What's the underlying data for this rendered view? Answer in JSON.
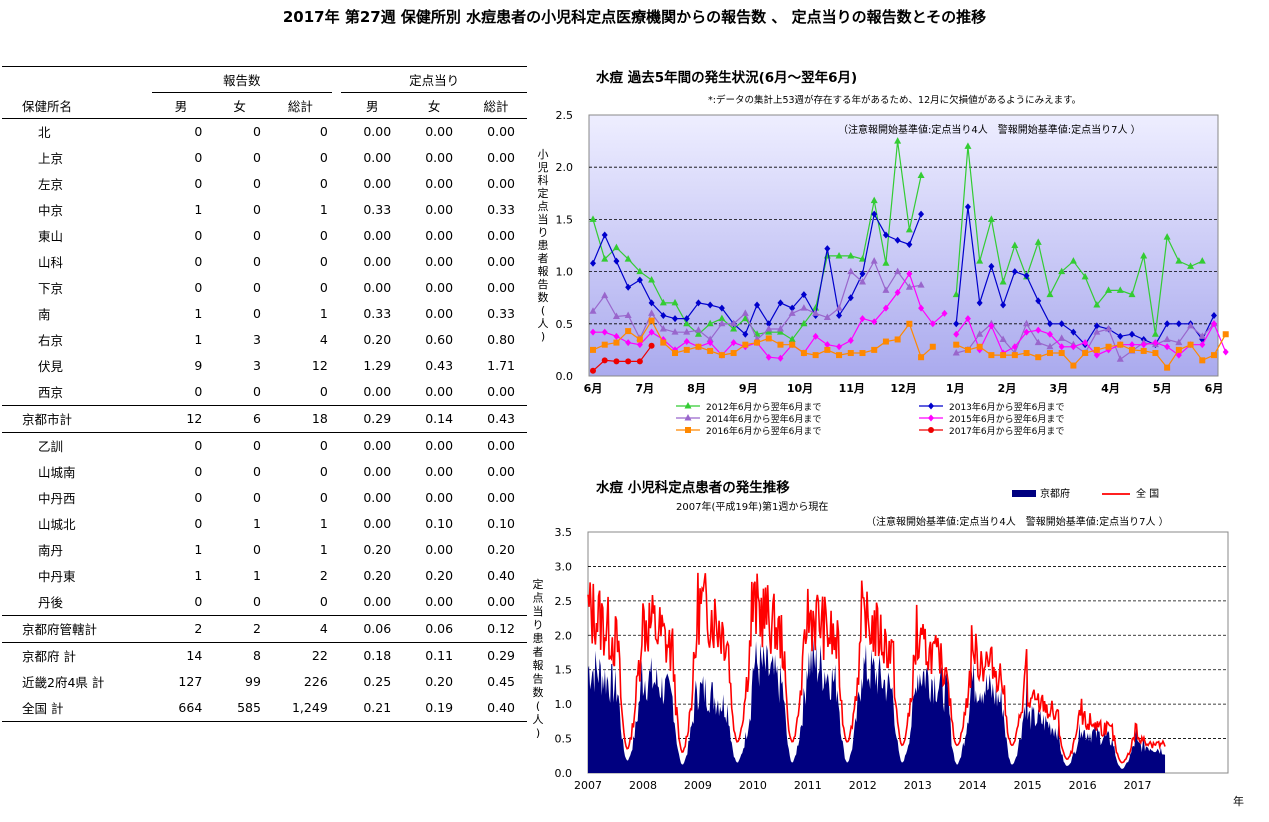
{
  "page": {
    "title": "2017年 第27週 保健所別 水痘患者の小児科定点医療機関からの報告数 、 定点当りの報告数とその推移"
  },
  "table": {
    "group_headers": {
      "reports": "報告数",
      "per_sentinel": "定点当り"
    },
    "col_headers": {
      "name": "保健所名",
      "male": "男",
      "female": "女",
      "total": "総計",
      "male2": "男",
      "female2": "女",
      "total2": "総計"
    },
    "rows": [
      {
        "name": "北",
        "m": "0",
        "f": "0",
        "t": "0",
        "pm": "0.00",
        "pf": "0.00",
        "pt": "0.00"
      },
      {
        "name": "上京",
        "m": "0",
        "f": "0",
        "t": "0",
        "pm": "0.00",
        "pf": "0.00",
        "pt": "0.00"
      },
      {
        "name": "左京",
        "m": "0",
        "f": "0",
        "t": "0",
        "pm": "0.00",
        "pf": "0.00",
        "pt": "0.00"
      },
      {
        "name": "中京",
        "m": "1",
        "f": "0",
        "t": "1",
        "pm": "0.33",
        "pf": "0.00",
        "pt": "0.33"
      },
      {
        "name": "東山",
        "m": "0",
        "f": "0",
        "t": "0",
        "pm": "0.00",
        "pf": "0.00",
        "pt": "0.00"
      },
      {
        "name": "山科",
        "m": "0",
        "f": "0",
        "t": "0",
        "pm": "0.00",
        "pf": "0.00",
        "pt": "0.00"
      },
      {
        "name": "下京",
        "m": "0",
        "f": "0",
        "t": "0",
        "pm": "0.00",
        "pf": "0.00",
        "pt": "0.00"
      },
      {
        "name": "南",
        "m": "1",
        "f": "0",
        "t": "1",
        "pm": "0.33",
        "pf": "0.00",
        "pt": "0.33"
      },
      {
        "name": "右京",
        "m": "1",
        "f": "3",
        "t": "4",
        "pm": "0.20",
        "pf": "0.60",
        "pt": "0.80"
      },
      {
        "name": "伏見",
        "m": "9",
        "f": "3",
        "t": "12",
        "pm": "1.29",
        "pf": "0.43",
        "pt": "1.71"
      },
      {
        "name": "西京",
        "m": "0",
        "f": "0",
        "t": "0",
        "pm": "0.00",
        "pf": "0.00",
        "pt": "0.00"
      },
      {
        "name": "京都市計",
        "m": "12",
        "f": "6",
        "t": "18",
        "pm": "0.29",
        "pf": "0.14",
        "pt": "0.43"
      },
      {
        "name": "乙訓",
        "m": "0",
        "f": "0",
        "t": "0",
        "pm": "0.00",
        "pf": "0.00",
        "pt": "0.00"
      },
      {
        "name": "山城南",
        "m": "0",
        "f": "0",
        "t": "0",
        "pm": "0.00",
        "pf": "0.00",
        "pt": "0.00"
      },
      {
        "name": "中丹西",
        "m": "0",
        "f": "0",
        "t": "0",
        "pm": "0.00",
        "pf": "0.00",
        "pt": "0.00"
      },
      {
        "name": "山城北",
        "m": "0",
        "f": "1",
        "t": "1",
        "pm": "0.00",
        "pf": "0.10",
        "pt": "0.10"
      },
      {
        "name": "南丹",
        "m": "1",
        "f": "0",
        "t": "1",
        "pm": "0.20",
        "pf": "0.00",
        "pt": "0.20"
      },
      {
        "name": "中丹東",
        "m": "1",
        "f": "1",
        "t": "2",
        "pm": "0.20",
        "pf": "0.20",
        "pt": "0.40"
      },
      {
        "name": "丹後",
        "m": "0",
        "f": "0",
        "t": "0",
        "pm": "0.00",
        "pf": "0.00",
        "pt": "0.00"
      },
      {
        "name": "京都府管轄計",
        "m": "2",
        "f": "2",
        "t": "4",
        "pm": "0.06",
        "pf": "0.06",
        "pt": "0.12"
      },
      {
        "name": "京都府 計",
        "m": "14",
        "f": "8",
        "t": "22",
        "pm": "0.18",
        "pf": "0.11",
        "pt": "0.29"
      },
      {
        "name": "近畿2府4県 計",
        "m": "127",
        "f": "99",
        "t": "226",
        "pm": "0.25",
        "pf": "0.20",
        "pt": "0.45"
      },
      {
        "name": "全国 計",
        "m": "664",
        "f": "585",
        "t": "1,249",
        "pm": "0.21",
        "pf": "0.19",
        "pt": "0.40"
      }
    ]
  },
  "chart_data": [
    {
      "type": "line",
      "title": "水痘 過去5年間の発生状況(6月～翌年6月)",
      "subtitle": "*:データの集計上53週が存在する年があるため、12月に欠損値があるようにみえます。",
      "annotation": "（注意報開始基準値:定点当り4人　警報開始基準値:定点当り7人 ）",
      "ylabel": "小児科定点当り患者報告数(人)",
      "ylim": [
        0,
        2.5
      ],
      "yticks": [
        "0.0",
        "0.5",
        "1.0",
        "1.5",
        "2.0",
        "2.5"
      ],
      "xticks": [
        "6月",
        "7月",
        "8月",
        "9月",
        "10月",
        "11月",
        "12月",
        "1月",
        "2月",
        "3月",
        "4月",
        "5月",
        "6月"
      ],
      "grid": true,
      "legend_position": "bottom",
      "background_gradient": [
        "#eeeeff",
        "#aaaaee"
      ],
      "series": [
        {
          "name": "2012年6月から翌年6月まで",
          "color": "#33cc33",
          "marker": "triangle",
          "segments": [
            {
              "start": 0,
              "values": [
                1.5,
                1.12,
                1.23,
                1.12,
                1.0,
                0.92,
                0.7,
                0.7,
                0.5,
                0.4,
                0.5,
                0.55,
                0.45,
                0.55,
                0.4,
                0.42,
                0.42,
                0.35,
                0.5,
                0.65,
                1.15,
                1.15,
                1.15,
                1.12,
                1.68,
                1.08,
                2.25,
                1.4,
                1.92
              ]
            },
            {
              "start": 31,
              "values": [
                0.78,
                2.2,
                1.1,
                1.5,
                0.9,
                1.25,
                0.95,
                1.28,
                0.78,
                1.0,
                1.1,
                0.95,
                0.68,
                0.82,
                0.82,
                0.78,
                1.15,
                0.4,
                1.33,
                1.1,
                1.05,
                1.1
              ]
            }
          ]
        },
        {
          "name": "2013年6月から翌年6月まで",
          "color": "#0000cc",
          "marker": "diamond",
          "segments": [
            {
              "start": 0,
              "values": [
                1.08,
                1.35,
                1.1,
                0.85,
                0.92,
                0.7,
                0.58,
                0.55,
                0.55,
                0.7,
                0.68,
                0.65,
                0.5,
                0.4,
                0.68,
                0.5,
                0.7,
                0.65,
                0.78,
                0.58,
                1.22,
                0.58,
                0.75,
                0.98,
                1.55,
                1.35,
                1.3,
                1.26,
                1.55
              ]
            },
            {
              "start": 31,
              "values": [
                0.5,
                1.62,
                0.7,
                1.05,
                0.68,
                1.0,
                0.96,
                0.72,
                0.5,
                0.5,
                0.42,
                0.3,
                0.48,
                0.45,
                0.38,
                0.4,
                0.35,
                0.3,
                0.5,
                0.5,
                0.5,
                0.35,
                0.58
              ]
            }
          ]
        },
        {
          "name": "2014年6月から翌年6月まで",
          "color": "#9966cc",
          "marker": "triangle",
          "segments": [
            {
              "start": 0,
              "values": [
                0.62,
                0.77,
                0.57,
                0.58,
                0.36,
                0.6,
                0.45,
                0.42,
                0.42,
                0.44,
                0.35,
                0.5,
                0.5,
                0.6,
                0.35,
                0.45,
                0.45,
                0.6,
                0.65,
                0.6,
                0.56,
                0.65,
                1.0,
                0.9,
                1.1,
                0.82,
                1.0,
                0.85,
                0.87
              ]
            },
            {
              "start": 31,
              "values": [
                0.22,
                0.25,
                0.4,
                0.5,
                0.35,
                0.22,
                0.5,
                0.32,
                0.28,
                0.36,
                0.3,
                0.22,
                0.42,
                0.45,
                0.16,
                0.24,
                0.32,
                0.3,
                0.35,
                0.32,
                0.48,
                0.38,
                0.5
              ]
            }
          ]
        },
        {
          "name": "2015年6月から翌年6月まで",
          "color": "#ff00ff",
          "marker": "diamond",
          "segments": [
            {
              "start": 0,
              "values": [
                0.42,
                0.42,
                0.38,
                0.32,
                0.3,
                0.42,
                0.35,
                0.25,
                0.33,
                0.28,
                0.32,
                0.2,
                0.32,
                0.28,
                0.32,
                0.18,
                0.17,
                0.3,
                0.22,
                0.38,
                0.3,
                0.28,
                0.34,
                0.55,
                0.52,
                0.65,
                0.8,
                0.98,
                0.65,
                0.5,
                0.6
              ]
            },
            {
              "start": 31,
              "values": [
                0.4,
                0.55,
                0.25,
                0.48,
                0.22,
                0.28,
                0.42,
                0.44,
                0.4,
                0.28,
                0.28,
                0.32,
                0.2,
                0.25,
                0.3,
                0.3,
                0.3,
                0.32,
                0.28,
                0.2,
                0.3,
                0.3,
                0.5,
                0.23
              ]
            }
          ]
        },
        {
          "name": "2016年6月から翌年6月まで",
          "color": "#ff8800",
          "marker": "square",
          "segments": [
            {
              "start": 0,
              "values": [
                0.25,
                0.3,
                0.32,
                0.43,
                0.35,
                0.53,
                0.32,
                0.22,
                0.25,
                0.28,
                0.24,
                0.2,
                0.22,
                0.3,
                0.32,
                0.36,
                0.3,
                0.3,
                0.22,
                0.2,
                0.25,
                0.2,
                0.22,
                0.22,
                0.25,
                0.33,
                0.35,
                0.5,
                0.18,
                0.28
              ]
            },
            {
              "start": 31,
              "values": [
                0.3,
                0.25,
                0.28,
                0.2,
                0.2,
                0.2,
                0.22,
                0.18,
                0.22,
                0.22,
                0.1,
                0.22,
                0.25,
                0.28,
                0.3,
                0.25,
                0.24,
                0.22,
                0.08,
                0.25,
                0.3,
                0.15,
                0.2,
                0.4
              ]
            }
          ]
        },
        {
          "name": "2017年6月から翌年6月まで",
          "color": "#ee0000",
          "marker": "circle",
          "segments": [
            {
              "start": 0,
              "values": [
                0.05,
                0.15,
                0.14,
                0.14,
                0.14,
                0.29
              ]
            }
          ]
        }
      ]
    },
    {
      "type": "area",
      "title": "水痘 小児科定点患者の発生推移",
      "subtitle": "2007年(平成19年)第1週から現在",
      "annotation": "（注意報開始基準値:定点当り4人　警報開始基準値:定点当り7人 ）",
      "ylabel": "定点当り患者報告数(人)",
      "xlabel": "年",
      "ylim": [
        0,
        3.5
      ],
      "yticks": [
        "0.0",
        "0.5",
        "1.0",
        "1.5",
        "2.0",
        "2.5",
        "3.0",
        "3.5"
      ],
      "xticks": [
        "2007",
        "2008",
        "2009",
        "2010",
        "2011",
        "2012",
        "2013",
        "2014",
        "2015",
        "2016",
        "2017"
      ],
      "grid": true,
      "legend_position": "top-right",
      "series": [
        {
          "name": "京都府",
          "kind": "area",
          "color": "#000080",
          "yearly_profile": {
            "peaks": [
              1.9,
              1.75,
              1.5,
              2.0,
              2.05,
              1.9,
              1.85,
              1.65,
              1.0,
              0.75,
              0.5
            ],
            "troughs": [
              0.18,
              0.12,
              0.15,
              0.15,
              0.15,
              0.15,
              0.12,
              0.12,
              0.1,
              0.06,
              0.05
            ]
          }
        },
        {
          "name": "全 国",
          "kind": "line",
          "color": "#ff0000",
          "yearly_profile": {
            "peaks": [
              2.9,
              2.75,
              3.0,
              2.95,
              2.8,
              2.65,
              2.2,
              2.05,
              1.25,
              0.9,
              0.55
            ],
            "troughs": [
              0.35,
              0.3,
              0.45,
              0.45,
              0.45,
              0.4,
              0.4,
              0.4,
              0.2,
              0.15,
              0.15
            ]
          }
        }
      ]
    }
  ]
}
